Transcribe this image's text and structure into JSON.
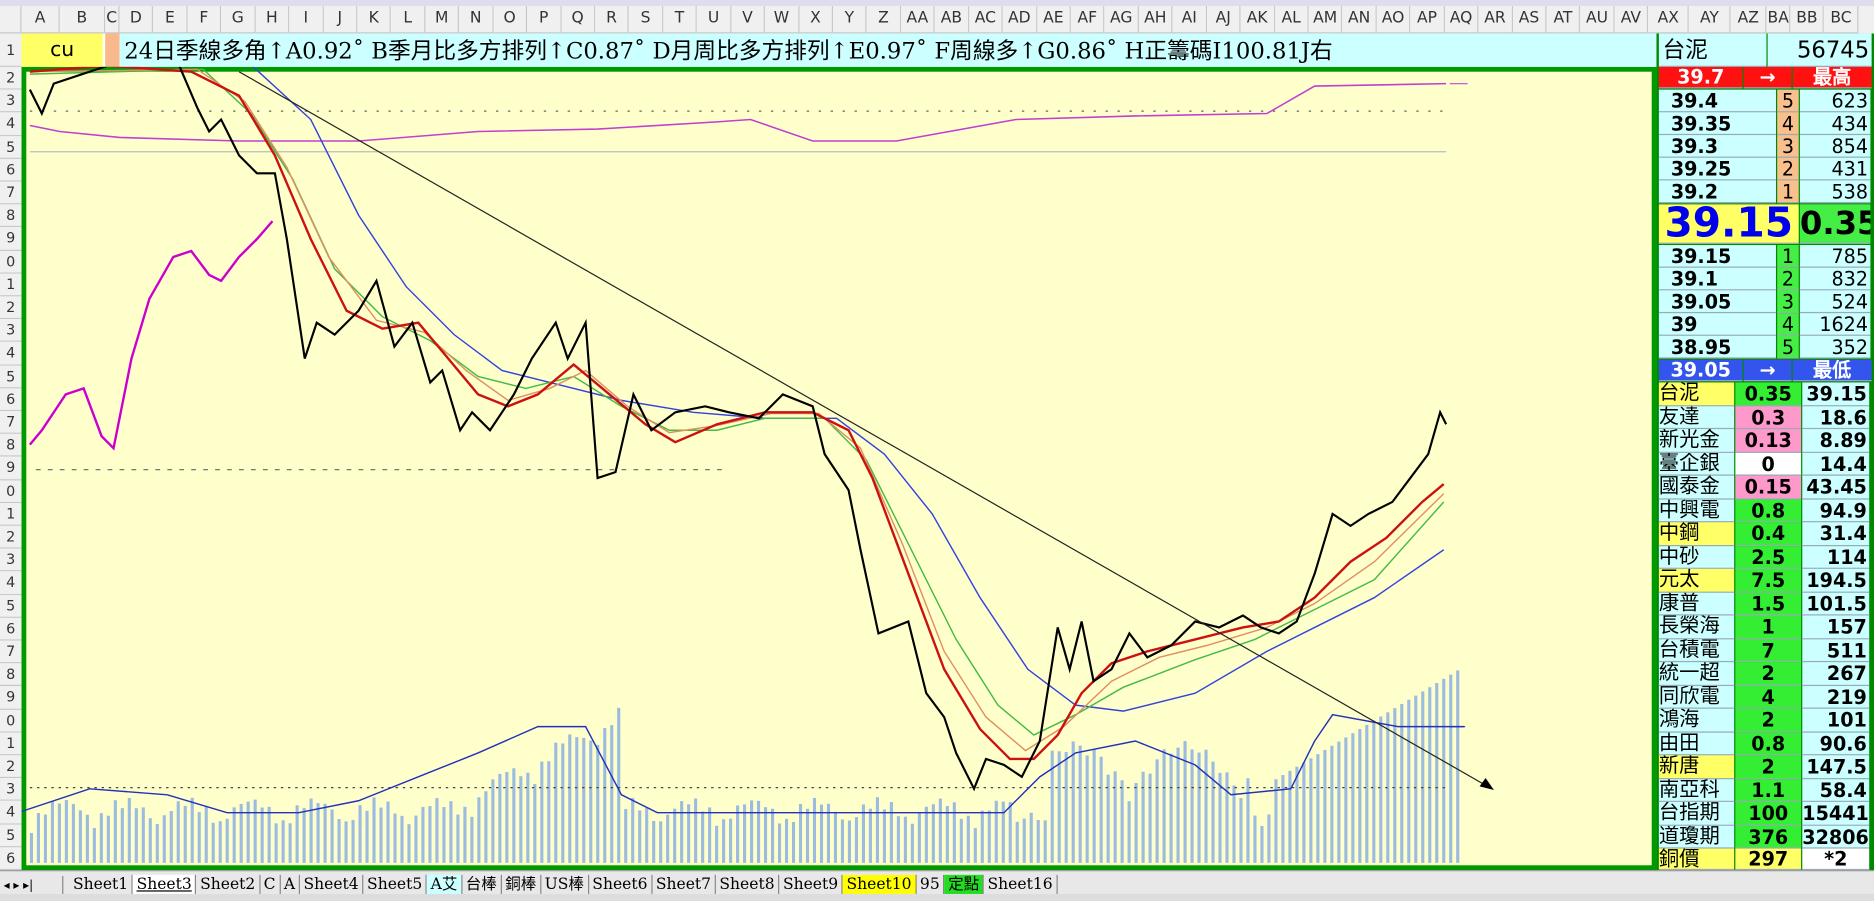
{
  "columns": [
    "A",
    "B",
    "C",
    "D",
    "E",
    "F",
    "G",
    "H",
    "I",
    "J",
    "K",
    "L",
    "M",
    "N",
    "O",
    "P",
    "Q",
    "R",
    "S",
    "T",
    "U",
    "V",
    "W",
    "X",
    "Y",
    "Z",
    "AA",
    "AB",
    "AC",
    "AD",
    "AE",
    "AF",
    "AG",
    "AH",
    "AI",
    "AJ",
    "AK",
    "AL",
    "AM",
    "AN",
    "AO",
    "AP",
    "AQ",
    "AR",
    "AS",
    "AT",
    "AU",
    "AV",
    "AX",
    "AY",
    "AZ",
    "BA",
    "BB",
    "BC"
  ],
  "rows": [
    "1",
    "2",
    "3",
    "4",
    "5",
    "6",
    "7",
    "8",
    "9",
    "0",
    "1",
    "2",
    "3",
    "4",
    "5",
    "6",
    "7",
    "8",
    "9",
    "0",
    "1",
    "2",
    "3",
    "4",
    "5",
    "6",
    "7",
    "8",
    "9",
    "0",
    "1",
    "2",
    "3",
    "4",
    "5",
    "6"
  ],
  "cell_a1": "cu",
  "ticker": "24日季線多角↑A0.92˚ B季月比多方排列↑C0.87˚ D月周比多方排列↑E0.97˚ F周線多↑G0.86˚ H正籌碼I100.81J右",
  "quote": {
    "name": "台泥",
    "code": "56745",
    "high": {
      "price": "39.7",
      "arrow": "→",
      "label": "最高"
    },
    "asks": [
      [
        "39.4",
        "5",
        "623"
      ],
      [
        "39.35",
        "4",
        "434"
      ],
      [
        "39.3",
        "3",
        "854"
      ],
      [
        "39.25",
        "2",
        "431"
      ],
      [
        "39.2",
        "1",
        "538"
      ]
    ],
    "last": "39.15",
    "change": "0.35",
    "bids": [
      [
        "39.15",
        "1",
        "785"
      ],
      [
        "39.1",
        "2",
        "832"
      ],
      [
        "39.05",
        "3",
        "524"
      ],
      [
        "39",
        "4",
        "1624"
      ],
      [
        "38.95",
        "5",
        "352"
      ]
    ],
    "low": {
      "price": "39.05",
      "arrow": "→",
      "label": "最低"
    }
  },
  "watchlist": [
    [
      "台泥",
      "0.35",
      "39.15"
    ],
    [
      "友達",
      "0.3",
      "18.6"
    ],
    [
      "新光金",
      "0.13",
      "8.89"
    ],
    [
      "臺企銀",
      "0",
      "14.4"
    ],
    [
      "國泰金",
      "0.15",
      "43.45"
    ],
    [
      "中興電",
      "0.8",
      "94.9"
    ],
    [
      "中鋼",
      "0.4",
      "31.4"
    ],
    [
      "中砂",
      "2.5",
      "114"
    ],
    [
      "元太",
      "7.5",
      "194.5"
    ],
    [
      "康普",
      "1.5",
      "101.5"
    ],
    [
      "長榮海",
      "1",
      "157"
    ],
    [
      "台積電",
      "7",
      "511"
    ],
    [
      "統一超",
      "2",
      "267"
    ],
    [
      "同欣電",
      "4",
      "219"
    ],
    [
      "鴻海",
      "2",
      "101"
    ],
    [
      "由田",
      "0.8",
      "90.6"
    ],
    [
      "新唐",
      "2",
      "147.5"
    ],
    [
      "南亞科",
      "1.1",
      "58.4"
    ],
    [
      "台指期",
      "100",
      "15441"
    ],
    [
      "道瓊期",
      "376",
      "32806"
    ]
  ],
  "footer": {
    "label": "銅價",
    "value": "297",
    "note": "*2"
  },
  "sheets": [
    "Sheet1",
    "Sheet3",
    "Sheet2",
    "C",
    "A",
    "Sheet4",
    "Sheet5",
    "A艾",
    "台棒",
    "銅棒",
    "US棒",
    "Sheet6",
    "Sheet7",
    "Sheet8",
    "Sheet9",
    "Sheet10",
    "95",
    "定點",
    "Sheet16"
  ]
}
